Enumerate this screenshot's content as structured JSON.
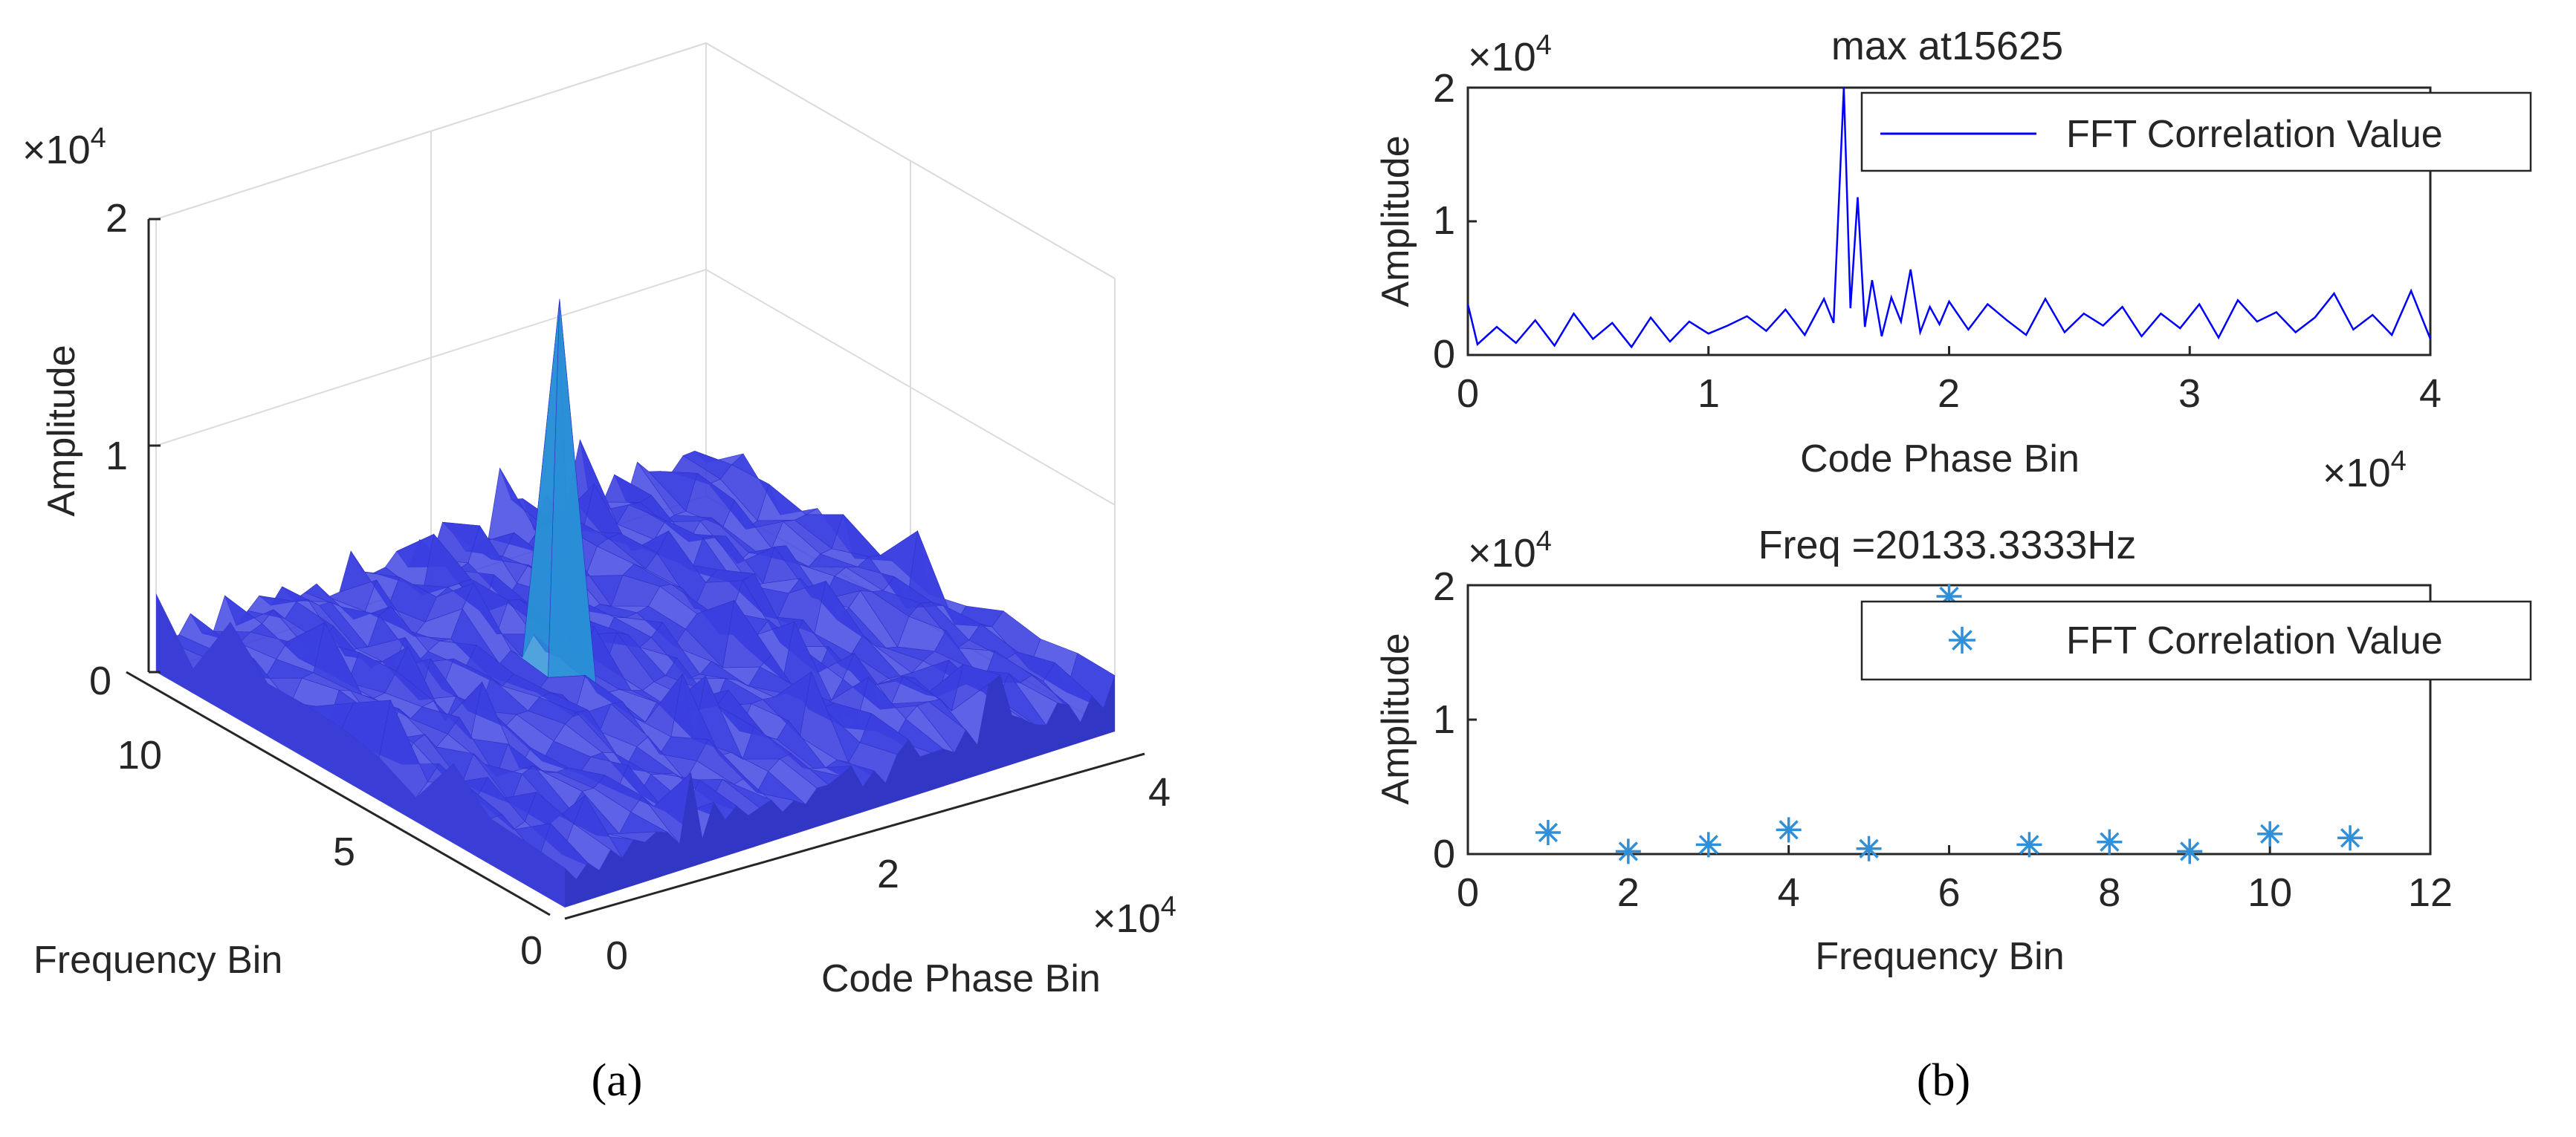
{
  "figure": {
    "panel_a_label": "(a)",
    "panel_b_label": "(b)"
  },
  "colors": {
    "axis": "#262626",
    "grid": "#dcdcdc",
    "surface_low": "#3b3fe0",
    "surface_mid": "#2a8fd6",
    "surface_peak": "#f2e21a",
    "line_blue": "#0000ff",
    "marker_blue": "#2f8fd8"
  },
  "chart_data": [
    {
      "type": "surface",
      "title": "",
      "xlabel": "Code Phase Bin",
      "ylabel": "Frequency Bin",
      "zlabel": "Amplitude",
      "x_exponent_label": "×10",
      "x_exponent_power": "4",
      "z_exponent_label": "×10",
      "z_exponent_power": "4",
      "xlim": [
        0,
        40000
      ],
      "ylim": [
        0,
        11
      ],
      "zlim": [
        0,
        20000
      ],
      "x_ticks": [
        "0",
        "2",
        "4"
      ],
      "y_ticks": [
        "0",
        "5",
        "10"
      ],
      "z_ticks": [
        "0",
        "1",
        "2"
      ],
      "peak": {
        "x": 15625,
        "y": 6,
        "z": 20133
      },
      "noise_level_approx": 2500
    },
    {
      "type": "line",
      "title": "max at15625",
      "xlabel": "Code Phase Bin",
      "ylabel": "Amplitude",
      "xlim": [
        0,
        40000
      ],
      "ylim": [
        0,
        20000
      ],
      "x_ticks": [
        "0",
        "1",
        "2",
        "3",
        "4"
      ],
      "y_ticks": [
        "0",
        "1",
        "2"
      ],
      "x_exponent_label": "×10",
      "x_exponent_power": "4",
      "y_exponent_label": "×10",
      "y_exponent_power": "4",
      "legend": "FFT Correlation Value",
      "legend_position": "top-right",
      "series": [
        {
          "name": "FFT Correlation Value",
          "x": [
            0,
            400,
            1200,
            2000,
            2800,
            3600,
            4400,
            5200,
            6000,
            6800,
            7600,
            8400,
            9200,
            10000,
            10800,
            11600,
            12400,
            13200,
            14000,
            14800,
            15200,
            15625,
            15900,
            16200,
            16500,
            16800,
            17200,
            17600,
            18000,
            18400,
            18800,
            19200,
            19600,
            20000,
            20800,
            21600,
            22400,
            23200,
            24000,
            24800,
            25600,
            26400,
            27200,
            28000,
            28800,
            29600,
            30400,
            31200,
            32000,
            32800,
            33600,
            34400,
            35200,
            36000,
            36800,
            37600,
            38400,
            39200,
            40000
          ],
          "values": [
            3800,
            800,
            2100,
            900,
            2600,
            700,
            3100,
            1200,
            2400,
            600,
            2800,
            1000,
            2500,
            1600,
            2200,
            2900,
            1800,
            3400,
            1500,
            4200,
            2400,
            20000,
            3500,
            11800,
            2100,
            5600,
            1400,
            4300,
            2500,
            6400,
            1700,
            3600,
            2300,
            4000,
            1900,
            3800,
            2600,
            1500,
            4200,
            1700,
            3100,
            2200,
            3600,
            1400,
            3100,
            2000,
            3800,
            1300,
            4100,
            2500,
            3200,
            1700,
            2800,
            4600,
            1900,
            3000,
            1500,
            4800,
            1200
          ]
        }
      ]
    },
    {
      "type": "scatter",
      "title": "Freq =20133.3333Hz",
      "xlabel": "Frequency Bin",
      "ylabel": "Amplitude",
      "xlim": [
        0,
        12
      ],
      "ylim": [
        0,
        20000
      ],
      "x_ticks": [
        "0",
        "2",
        "4",
        "6",
        "8",
        "10",
        "12"
      ],
      "y_ticks": [
        "0",
        "1",
        "2"
      ],
      "y_exponent_label": "×10",
      "y_exponent_power": "4",
      "legend": "FFT Correlation Value",
      "legend_position": "top-right",
      "series": [
        {
          "name": "FFT Correlation Value",
          "x": [
            1,
            2,
            3,
            4,
            5,
            6,
            7,
            8,
            9,
            10,
            11
          ],
          "values": [
            1600,
            200,
            700,
            1800,
            400,
            20133,
            700,
            900,
            200,
            1500,
            1200
          ]
        }
      ]
    }
  ]
}
